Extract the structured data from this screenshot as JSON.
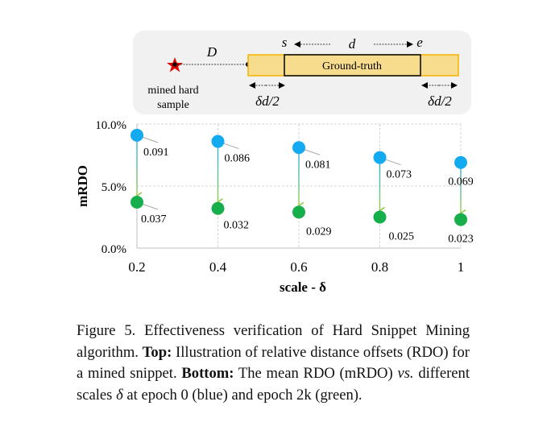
{
  "illustration": {
    "star_label_line1": "mined hard",
    "star_label_line2": "sample",
    "distance_label": "D",
    "start_label": "s",
    "end_label": "e",
    "length_label": "d",
    "gt_label": "Ground-truth",
    "margin_left_label": "δd/2",
    "margin_right_label": "δd/2",
    "colors": {
      "gt_fill": "#f8dc8e",
      "gt_border": "#f5b400",
      "star": "#e00000",
      "panel": "#f1f1f1"
    }
  },
  "chart_data": {
    "type": "scatter",
    "title": "",
    "xlabel": "scale - δ",
    "ylabel": "mRDO",
    "x": [
      0.2,
      0.4,
      0.6,
      0.8,
      1
    ],
    "x_tick_labels": [
      "0.2",
      "0.4",
      "0.6",
      "0.8",
      "1"
    ],
    "y_tick_labels": [
      "0.0%",
      "5.0%",
      "10.0%"
    ],
    "y_ticks": [
      0,
      0.05,
      0.1
    ],
    "ylim": [
      0,
      0.1
    ],
    "grid": true,
    "series": [
      {
        "name": "epoch 0",
        "color": "#14aaf0",
        "values": [
          0.091,
          0.086,
          0.081,
          0.073,
          0.069
        ],
        "labels": [
          "0.091",
          "0.086",
          "0.081",
          "0.073",
          "0.069"
        ]
      },
      {
        "name": "epoch 2k",
        "color": "#17ae4c",
        "values": [
          0.037,
          0.032,
          0.029,
          0.025,
          0.023
        ],
        "labels": [
          "0.037",
          "0.032",
          "0.029",
          "0.025",
          "0.023"
        ]
      }
    ]
  },
  "caption": {
    "prefix": "Figure 5. Effectiveness verification of Hard Snippet Mining algorithm.",
    "top_label": "Top:",
    "top_text": "Illustration of relative distance offsets (RDO) for a mined snippet.",
    "bottom_label": "Bottom:",
    "bottom_text_1": "The mean RDO (mRDO)",
    "vs": "vs.",
    "bottom_text_2": "different scales",
    "delta": "δ",
    "bottom_text_3": "at epoch 0 (blue) and epoch 2k (green)."
  }
}
